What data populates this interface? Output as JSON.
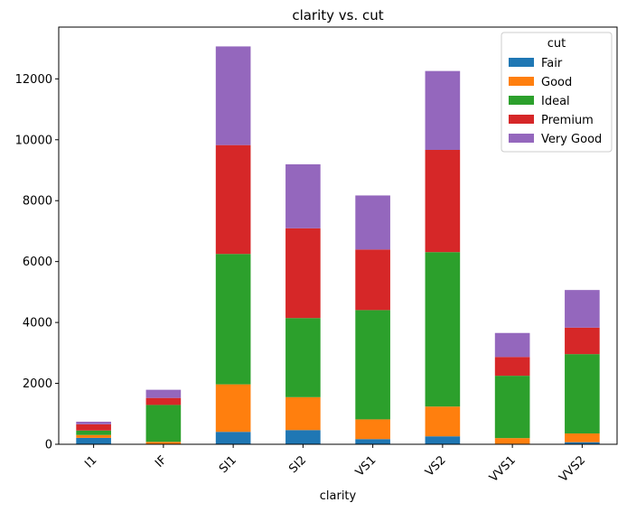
{
  "chart_data": {
    "type": "bar",
    "stacked": true,
    "title": "clarity vs. cut",
    "xlabel": "clarity",
    "ylabel": "",
    "categories": [
      "I1",
      "IF",
      "SI1",
      "SI2",
      "VS1",
      "VS2",
      "VVS1",
      "VVS2"
    ],
    "ylim": [
      0,
      13700
    ],
    "yticks": [
      0,
      2000,
      4000,
      6000,
      8000,
      10000,
      12000
    ],
    "legend": {
      "title": "cut",
      "position": "top-right"
    },
    "series": [
      {
        "name": "Fair",
        "color": "#1f77b4",
        "values": [
          210,
          9,
          408,
          466,
          170,
          261,
          17,
          69
        ]
      },
      {
        "name": "Good",
        "color": "#ff7f0e",
        "values": [
          96,
          71,
          1560,
          1081,
          648,
          978,
          186,
          286
        ]
      },
      {
        "name": "Ideal",
        "color": "#2ca02c",
        "values": [
          146,
          1212,
          4282,
          2598,
          3589,
          5071,
          2047,
          2606
        ]
      },
      {
        "name": "Premium",
        "color": "#d62728",
        "values": [
          205,
          230,
          3575,
          2949,
          1989,
          3357,
          616,
          870
        ]
      },
      {
        "name": "Very Good",
        "color": "#9467bd",
        "values": [
          84,
          268,
          3240,
          2100,
          1775,
          2591,
          789,
          1235
        ]
      }
    ]
  }
}
